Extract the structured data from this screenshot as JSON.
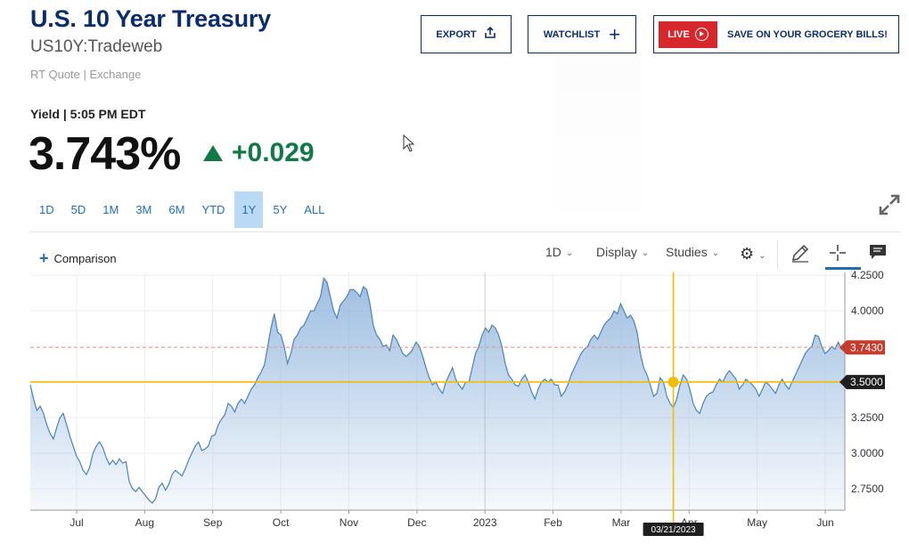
{
  "header": {
    "title": "U.S. 10 Year Treasury",
    "symbol": "US10Y:Tradeweb",
    "source": "RT Quote | Exchange",
    "yield_label": "Yield | 5:05 PM EDT",
    "price": "3.743%",
    "change": "+0.029"
  },
  "buttons": {
    "export": "EXPORT",
    "watchlist": "WATCHLIST",
    "live": "LIVE",
    "promo": "SAVE ON YOUR GROCERY BILLS!"
  },
  "ranges": [
    "1D",
    "5D",
    "1M",
    "3M",
    "6M",
    "YTD",
    "1Y",
    "5Y",
    "ALL"
  ],
  "active_range": "1Y",
  "toolbar": {
    "comparison": "Comparison",
    "interval": "1D",
    "display": "Display",
    "studies": "Studies"
  },
  "colors": {
    "brand": "#0b2d6b",
    "up": "#0f7a45",
    "live": "#d6272d",
    "line": "#4a82b8",
    "crosshair": "#f2bd00",
    "last_price_tag": "#c43c2a"
  },
  "chart_data": {
    "type": "area",
    "x_labels": [
      "Jul",
      "Aug",
      "Sep",
      "Oct",
      "Nov",
      "Dec",
      "2023",
      "Feb",
      "Mar",
      "Apr",
      "May",
      "Jun"
    ],
    "y_ticks": [
      "4.2500",
      "4.0000",
      "3.7500",
      "3.5000",
      "3.2500",
      "3.0000",
      "2.7500"
    ],
    "ylim": [
      2.6,
      4.27
    ],
    "last_value": "3.7430",
    "crosshair_value": "3.5000",
    "crosshair_date": "03/21/2023",
    "series": [
      {
        "values": [
          3.48,
          3.38,
          3.3,
          3.33,
          3.28,
          3.2,
          3.14,
          3.1,
          3.18,
          3.25,
          3.28,
          3.2,
          3.12,
          3.05,
          2.98,
          2.94,
          2.88,
          2.85,
          2.9,
          3.0,
          3.05,
          3.08,
          3.04,
          2.97,
          2.92,
          2.95,
          2.92,
          2.96,
          2.93,
          2.94,
          2.8,
          2.75,
          2.73,
          2.76,
          2.73,
          2.7,
          2.67,
          2.65,
          2.68,
          2.76,
          2.79,
          2.74,
          2.78,
          2.85,
          2.88,
          2.86,
          2.84,
          2.89,
          2.95,
          3.0,
          3.05,
          3.08,
          3.02,
          3.03,
          3.05,
          3.12,
          3.13,
          3.2,
          3.24,
          3.27,
          3.35,
          3.33,
          3.29,
          3.35,
          3.38,
          3.35,
          3.4,
          3.45,
          3.48,
          3.53,
          3.57,
          3.62,
          3.75,
          3.88,
          3.98,
          3.85,
          3.83,
          3.75,
          3.63,
          3.7,
          3.8,
          3.83,
          3.88,
          3.9,
          3.95,
          4.0,
          4.0,
          4.05,
          4.1,
          4.23,
          4.2,
          4.1,
          4.0,
          3.95,
          4.04,
          4.07,
          4.1,
          4.15,
          4.15,
          4.13,
          4.1,
          4.17,
          4.15,
          4.05,
          3.9,
          3.83,
          3.8,
          3.75,
          3.76,
          3.72,
          3.83,
          3.8,
          3.75,
          3.7,
          3.68,
          3.7,
          3.73,
          3.78,
          3.75,
          3.68,
          3.6,
          3.53,
          3.48,
          3.5,
          3.45,
          3.42,
          3.5,
          3.55,
          3.6,
          3.52,
          3.48,
          3.45,
          3.5,
          3.5,
          3.6,
          3.7,
          3.75,
          3.83,
          3.88,
          3.85,
          3.9,
          3.88,
          3.83,
          3.75,
          3.63,
          3.55,
          3.52,
          3.48,
          3.47,
          3.52,
          3.55,
          3.5,
          3.43,
          3.38,
          3.45,
          3.5,
          3.52,
          3.5,
          3.52,
          3.48,
          3.48,
          3.4,
          3.43,
          3.48,
          3.55,
          3.6,
          3.65,
          3.7,
          3.73,
          3.75,
          3.8,
          3.83,
          3.8,
          3.85,
          3.9,
          3.93,
          3.95,
          4.0,
          3.98,
          4.05,
          4.0,
          3.95,
          3.97,
          3.93,
          3.85,
          3.7,
          3.6,
          3.55,
          3.48,
          3.4,
          3.42,
          3.53,
          3.5,
          3.4,
          3.35,
          3.32,
          3.38,
          3.48,
          3.55,
          3.52,
          3.45,
          3.35,
          3.3,
          3.28,
          3.35,
          3.4,
          3.42,
          3.43,
          3.48,
          3.52,
          3.5,
          3.55,
          3.58,
          3.55,
          3.52,
          3.45,
          3.48,
          3.52,
          3.5,
          3.48,
          3.45,
          3.4,
          3.45,
          3.5,
          3.48,
          3.45,
          3.42,
          3.48,
          3.52,
          3.48,
          3.45,
          3.5,
          3.55,
          3.6,
          3.65,
          3.7,
          3.73,
          3.75,
          3.83,
          3.82,
          3.75,
          3.7,
          3.72,
          3.75,
          3.73,
          3.78,
          3.73,
          3.74
        ]
      }
    ]
  }
}
